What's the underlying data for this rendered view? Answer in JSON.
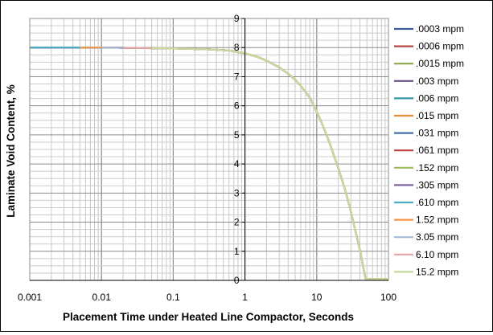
{
  "chart_data": {
    "type": "line",
    "title": "",
    "xlabel": "Placement Time under Heated Line Compactor, Seconds",
    "ylabel": "Laminate Void Content, %",
    "x_scale": "log",
    "xlim": [
      0.001,
      100
    ],
    "ylim": [
      0,
      9
    ],
    "x_ticks": [
      "0.001",
      "0.01",
      "0.1",
      "1",
      "10",
      "100"
    ],
    "y_ticks": [
      "0",
      "1",
      "2",
      "3",
      "4",
      "5",
      "6",
      "7",
      "8",
      "9"
    ],
    "grid": true,
    "legend_position": "right",
    "curve": {
      "x": [
        0.001,
        0.01,
        0.1,
        0.3,
        0.6,
        1,
        1.5,
        2,
        3,
        4,
        5,
        6,
        8,
        10,
        12,
        15,
        20,
        25,
        30,
        40,
        48,
        100
      ],
      "y": [
        8.0,
        8.0,
        7.97,
        7.94,
        7.9,
        7.8,
        7.68,
        7.55,
        7.32,
        7.1,
        6.9,
        6.68,
        6.28,
        5.8,
        5.35,
        4.75,
        3.85,
        3.1,
        2.35,
        1.05,
        0.05,
        0.05
      ]
    },
    "series": [
      {
        "name": ".0003 mpm",
        "color": "#3a5f98",
        "x_start": 0.001
      },
      {
        "name": ".0006 mpm",
        "color": "#b5473d",
        "x_start": 0.001
      },
      {
        "name": ".0015 mpm",
        "color": "#8ca84a",
        "x_start": 0.001
      },
      {
        "name": ".003 mpm",
        "color": "#6c4f8c",
        "x_start": 0.001
      },
      {
        "name": ".006 mpm",
        "color": "#3494ac",
        "x_start": 0.001
      },
      {
        "name": ".015 mpm",
        "color": "#e88d38",
        "x_start": 0.001
      },
      {
        "name": ".031 mpm",
        "color": "#4274a9",
        "x_start": 0.001
      },
      {
        "name": ".061 mpm",
        "color": "#c2413a",
        "x_start": 0.001
      },
      {
        "name": ".152 mpm",
        "color": "#9bbb59",
        "x_start": 0.001
      },
      {
        "name": ".305 mpm",
        "color": "#8064a2",
        "x_start": 0.001
      },
      {
        "name": ".610 mpm",
        "color": "#4bacc6",
        "x_start": 0.001
      },
      {
        "name": "1.52 mpm",
        "color": "#f79646",
        "x_start": 0.005
      },
      {
        "name": "3.05 mpm",
        "color": "#a5b8d8",
        "x_start": 0.01
      },
      {
        "name": "6.10 mpm",
        "color": "#e4a5a5",
        "x_start": 0.02
      },
      {
        "name": "15.2 mpm",
        "color": "#c6da9a",
        "x_start": 0.05
      }
    ]
  }
}
